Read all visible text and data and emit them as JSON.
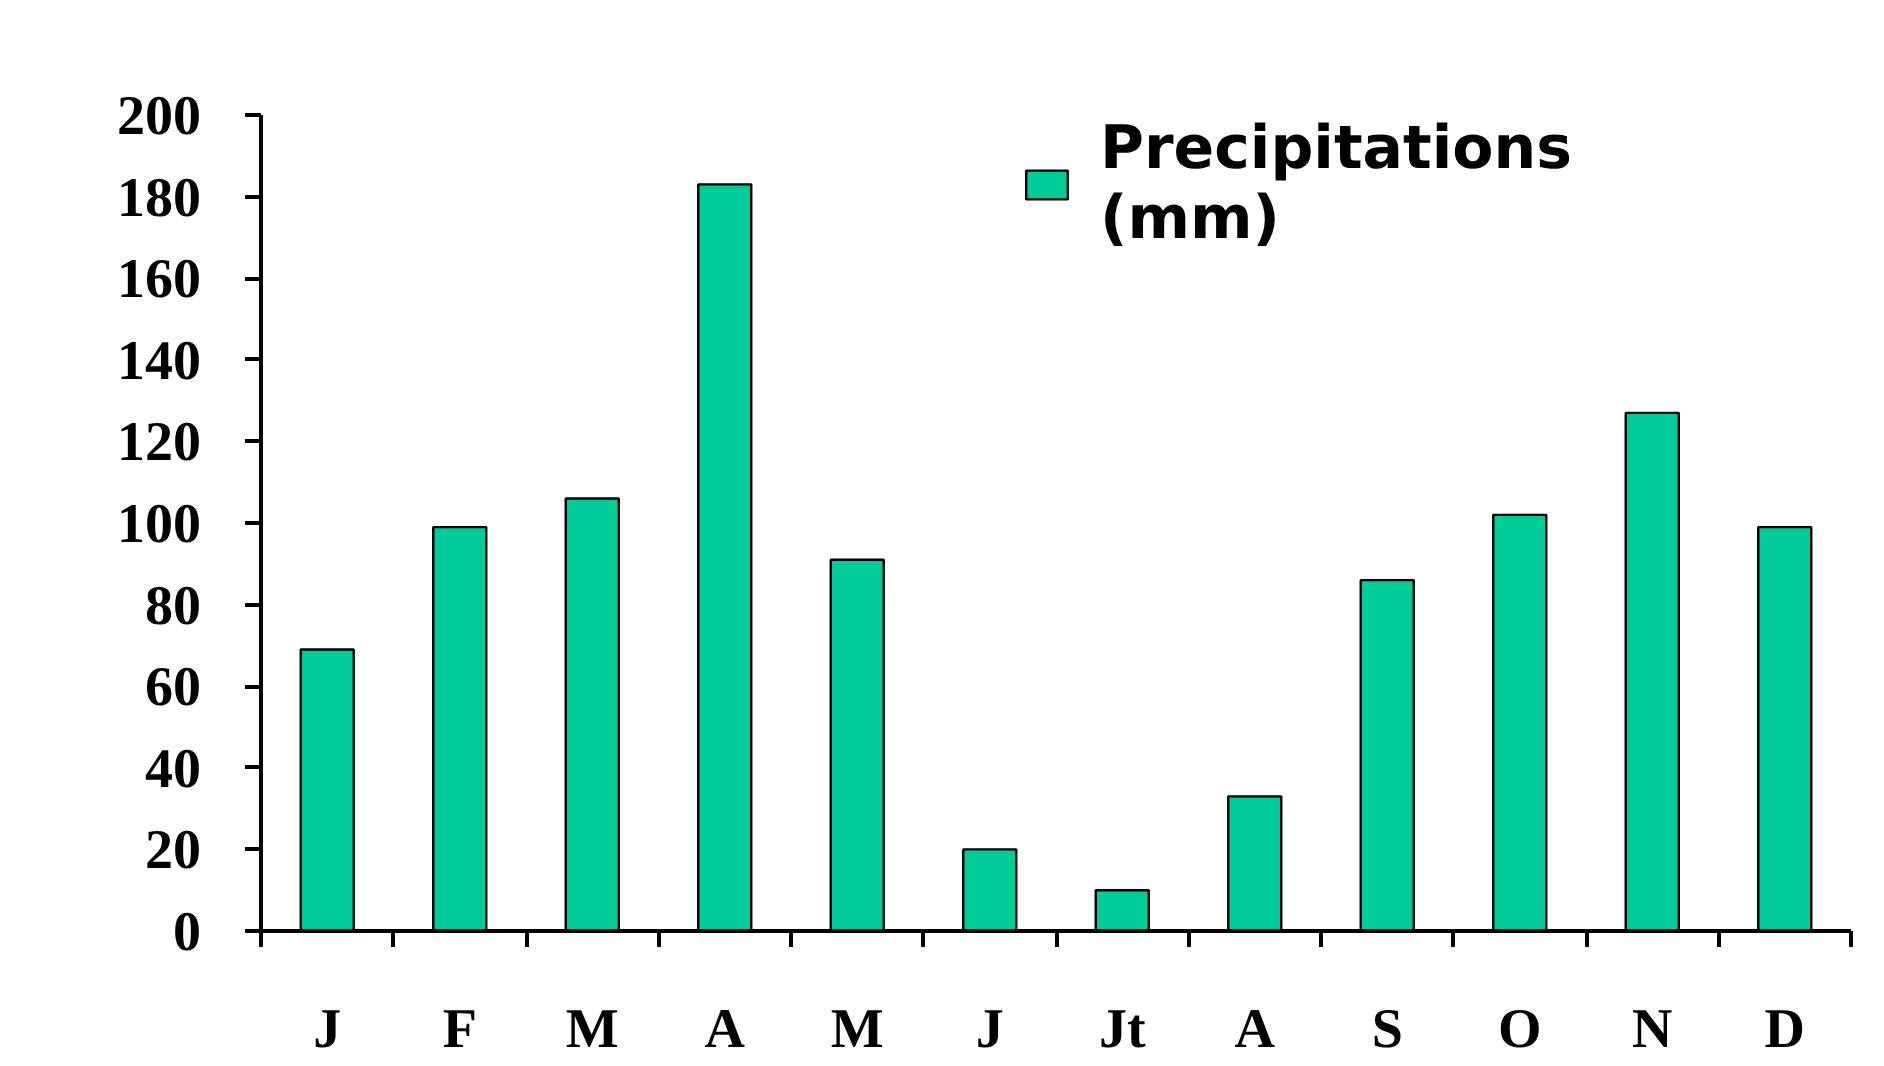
{
  "chart_data": {
    "type": "bar",
    "categories": [
      "J",
      "F",
      "M",
      "A",
      "M",
      "J",
      "Jt",
      "A",
      "S",
      "O",
      "N",
      "D"
    ],
    "series": [
      {
        "name": "Precipitations (mm)",
        "color": "#00cc99",
        "values": [
          69,
          99,
          106,
          183,
          91,
          20,
          10,
          33,
          86,
          102,
          127,
          99
        ]
      }
    ],
    "ylim": [
      0,
      200
    ],
    "yticks": [
      0,
      20,
      40,
      60,
      80,
      100,
      120,
      140,
      160,
      180,
      200
    ],
    "grid": false,
    "legend": "top right"
  }
}
